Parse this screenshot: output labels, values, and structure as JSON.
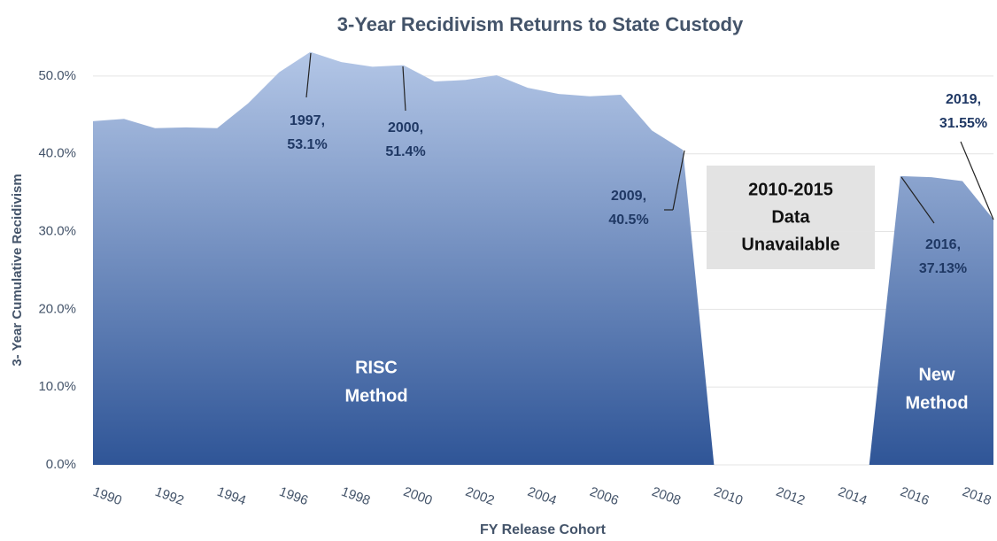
{
  "chart_data": {
    "type": "area",
    "title": "3-Year Recidivism Returns to State Custody",
    "x_label": "FY Release Cohort",
    "y_label": "3- Year Cumulative Recidivism",
    "x": [
      1990,
      1991,
      1992,
      1993,
      1994,
      1995,
      1996,
      1997,
      1998,
      1999,
      2000,
      2001,
      2002,
      2003,
      2004,
      2005,
      2006,
      2007,
      2008,
      2009,
      2010,
      2011,
      2012,
      2013,
      2014,
      2015,
      2016,
      2017,
      2018,
      2019
    ],
    "series": [
      {
        "name": "3-Year Cumulative Recidivism",
        "color": "#2f5597",
        "values": [
          44.2,
          44.5,
          43.3,
          43.4,
          43.3,
          46.5,
          50.5,
          53.1,
          51.8,
          51.2,
          51.4,
          49.3,
          49.5,
          50.1,
          48.5,
          47.7,
          47.4,
          47.6,
          43.0,
          40.5,
          0,
          null,
          null,
          null,
          null,
          0,
          37.13,
          37.0,
          36.5,
          31.55
        ]
      }
    ],
    "xlim": [
      1990,
      2019
    ],
    "xticks": [
      1990,
      1992,
      1994,
      1996,
      1998,
      2000,
      2002,
      2004,
      2006,
      2008,
      2010,
      2012,
      2014,
      2016,
      2018
    ],
    "ylim": [
      0,
      55
    ],
    "yticks": [
      {
        "value": 0,
        "label": "0.0%"
      },
      {
        "value": 10,
        "label": "10.0%"
      },
      {
        "value": 20,
        "label": "20.0%"
      },
      {
        "value": 30,
        "label": "30.0%"
      },
      {
        "value": 40,
        "label": "40.0%"
      },
      {
        "value": 50,
        "label": "50.0%"
      }
    ],
    "grid": true,
    "annotations": [
      {
        "lines": [
          "1997,",
          "53.1%"
        ]
      },
      {
        "lines": [
          "2000,",
          "51.4%"
        ]
      },
      {
        "lines": [
          "2009,",
          "40.5%"
        ]
      },
      {
        "lines": [
          "2016,",
          "37.13%"
        ]
      },
      {
        "lines": [
          "2019,",
          "31.55%"
        ]
      }
    ],
    "method_labels": [
      {
        "lines": [
          "RISC",
          "Method"
        ]
      },
      {
        "lines": [
          "New",
          "Method"
        ]
      }
    ],
    "gap_note": {
      "lines": [
        "2010-2015",
        "Data",
        "Unavailable"
      ]
    }
  }
}
